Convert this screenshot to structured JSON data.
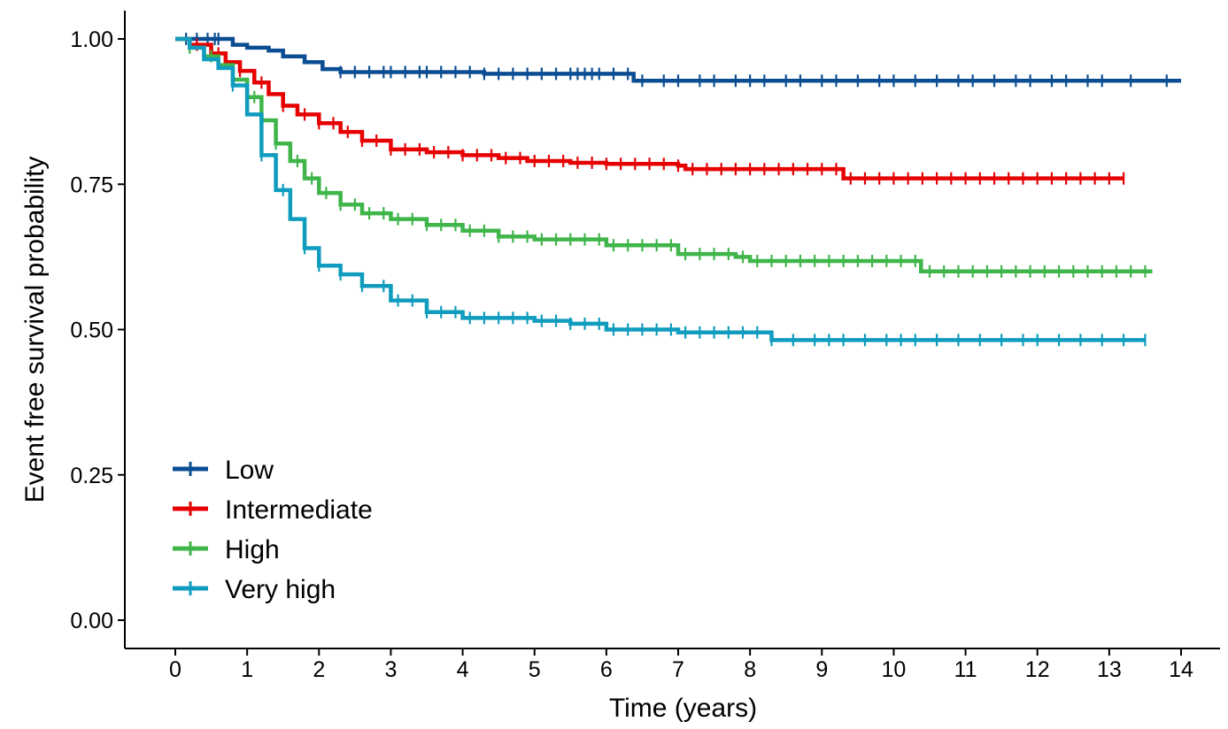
{
  "chart_data": {
    "type": "line",
    "title": "",
    "xlabel": "Time (years)",
    "ylabel": "Event free survival probability",
    "xlim": [
      0,
      14
    ],
    "ylim": [
      0,
      1
    ],
    "x_ticks": [
      "0",
      "1",
      "2",
      "3",
      "4",
      "5",
      "6",
      "7",
      "8",
      "9",
      "10",
      "11",
      "12",
      "13",
      "14"
    ],
    "y_ticks": [
      "0.00",
      "0.25",
      "0.50",
      "0.75",
      "1.00"
    ],
    "grid": false,
    "legend_position": "bottom-left",
    "series": [
      {
        "name": "Low",
        "color": "#0B4D93",
        "step": true,
        "points": [
          [
            0,
            1.0
          ],
          [
            0.8,
            0.99
          ],
          [
            1.0,
            0.985
          ],
          [
            1.3,
            0.98
          ],
          [
            1.5,
            0.97
          ],
          [
            1.8,
            0.96
          ],
          [
            2.05,
            0.948
          ],
          [
            2.3,
            0.943
          ],
          [
            3.5,
            0.943
          ],
          [
            4.3,
            0.94
          ],
          [
            6.3,
            0.94
          ],
          [
            6.38,
            0.928
          ],
          [
            14.0,
            0.928
          ]
        ],
        "censor_x": [
          0.15,
          0.3,
          0.45,
          0.55,
          0.6,
          2.3,
          2.5,
          2.7,
          2.9,
          3.0,
          3.2,
          3.4,
          3.5,
          3.7,
          3.9,
          4.1,
          4.3,
          4.5,
          4.7,
          4.9,
          5.1,
          5.3,
          5.5,
          5.6,
          5.7,
          5.8,
          5.9,
          6.1,
          6.3,
          6.5,
          6.8,
          7.0,
          7.3,
          7.5,
          7.8,
          8.0,
          8.2,
          8.5,
          8.7,
          9.0,
          9.2,
          9.5,
          9.8,
          10.0,
          10.3,
          10.6,
          10.9,
          11.1,
          11.4,
          11.7,
          11.9,
          12.2,
          12.4,
          12.7,
          12.9,
          13.3,
          13.8
        ]
      },
      {
        "name": "Intermediate",
        "color": "#E60000",
        "step": true,
        "points": [
          [
            0,
            1.0
          ],
          [
            0.2,
            0.99
          ],
          [
            0.5,
            0.975
          ],
          [
            0.7,
            0.96
          ],
          [
            0.9,
            0.945
          ],
          [
            1.1,
            0.925
          ],
          [
            1.3,
            0.905
          ],
          [
            1.5,
            0.885
          ],
          [
            1.7,
            0.87
          ],
          [
            2.0,
            0.855
          ],
          [
            2.3,
            0.84
          ],
          [
            2.6,
            0.825
          ],
          [
            3.0,
            0.81
          ],
          [
            3.5,
            0.805
          ],
          [
            4.0,
            0.8
          ],
          [
            4.5,
            0.795
          ],
          [
            4.9,
            0.79
          ],
          [
            5.5,
            0.787
          ],
          [
            6.0,
            0.785
          ],
          [
            7.0,
            0.782
          ],
          [
            7.1,
            0.776
          ],
          [
            8.9,
            0.776
          ],
          [
            9.3,
            0.76
          ],
          [
            13.2,
            0.76
          ]
        ],
        "censor_x": [
          0.3,
          0.6,
          0.9,
          1.2,
          1.5,
          1.8,
          2.0,
          2.2,
          2.4,
          2.6,
          2.8,
          3.0,
          3.2,
          3.4,
          3.6,
          3.8,
          4.0,
          4.2,
          4.4,
          4.6,
          4.8,
          5.0,
          5.2,
          5.4,
          5.6,
          5.8,
          6.0,
          6.2,
          6.4,
          6.6,
          6.8,
          7.0,
          7.2,
          7.4,
          7.6,
          7.8,
          8.0,
          8.2,
          8.4,
          8.6,
          8.8,
          9.0,
          9.2,
          9.4,
          9.6,
          9.8,
          10.0,
          10.2,
          10.4,
          10.6,
          10.8,
          11.0,
          11.2,
          11.4,
          11.6,
          11.8,
          12.0,
          12.2,
          12.4,
          12.6,
          12.8,
          13.0,
          13.2
        ]
      },
      {
        "name": "High",
        "color": "#3FB54A",
        "step": true,
        "points": [
          [
            0,
            1.0
          ],
          [
            0.2,
            0.985
          ],
          [
            0.4,
            0.97
          ],
          [
            0.6,
            0.955
          ],
          [
            0.8,
            0.93
          ],
          [
            1.0,
            0.9
          ],
          [
            1.2,
            0.86
          ],
          [
            1.4,
            0.82
          ],
          [
            1.6,
            0.79
          ],
          [
            1.8,
            0.76
          ],
          [
            2.0,
            0.735
          ],
          [
            2.3,
            0.715
          ],
          [
            2.6,
            0.7
          ],
          [
            3.0,
            0.69
          ],
          [
            3.5,
            0.68
          ],
          [
            4.0,
            0.67
          ],
          [
            4.5,
            0.66
          ],
          [
            5.0,
            0.655
          ],
          [
            6.0,
            0.645
          ],
          [
            7.0,
            0.63
          ],
          [
            7.8,
            0.625
          ],
          [
            8.0,
            0.618
          ],
          [
            10.3,
            0.618
          ],
          [
            10.38,
            0.6
          ],
          [
            13.6,
            0.6
          ]
        ],
        "censor_x": [
          0.2,
          0.5,
          0.8,
          1.1,
          1.4,
          1.7,
          1.9,
          2.1,
          2.3,
          2.5,
          2.7,
          2.9,
          3.1,
          3.3,
          3.5,
          3.7,
          3.9,
          4.1,
          4.3,
          4.5,
          4.7,
          4.9,
          5.1,
          5.3,
          5.5,
          5.7,
          5.9,
          6.1,
          6.3,
          6.5,
          6.7,
          6.9,
          7.1,
          7.3,
          7.5,
          7.7,
          7.9,
          8.1,
          8.3,
          8.5,
          8.7,
          8.9,
          9.1,
          9.3,
          9.5,
          9.7,
          9.9,
          10.1,
          10.3,
          10.5,
          10.7,
          10.9,
          11.1,
          11.3,
          11.5,
          11.7,
          11.9,
          12.1,
          12.3,
          12.5,
          12.7,
          12.9,
          13.1,
          13.3,
          13.5
        ]
      },
      {
        "name": "Very high",
        "color": "#0F9CBE",
        "step": true,
        "points": [
          [
            0,
            1.0
          ],
          [
            0.2,
            0.985
          ],
          [
            0.4,
            0.965
          ],
          [
            0.6,
            0.95
          ],
          [
            0.8,
            0.92
          ],
          [
            1.0,
            0.87
          ],
          [
            1.2,
            0.8
          ],
          [
            1.4,
            0.74
          ],
          [
            1.6,
            0.69
          ],
          [
            1.8,
            0.64
          ],
          [
            2.0,
            0.61
          ],
          [
            2.3,
            0.595
          ],
          [
            2.6,
            0.575
          ],
          [
            3.0,
            0.55
          ],
          [
            3.5,
            0.53
          ],
          [
            4.0,
            0.52
          ],
          [
            4.5,
            0.52
          ],
          [
            5.0,
            0.515
          ],
          [
            5.5,
            0.51
          ],
          [
            6.0,
            0.5
          ],
          [
            7.0,
            0.495
          ],
          [
            8.2,
            0.495
          ],
          [
            8.3,
            0.482
          ],
          [
            13.5,
            0.482
          ]
        ],
        "censor_x": [
          0.8,
          1.2,
          1.5,
          1.8,
          2.0,
          2.3,
          2.6,
          2.9,
          3.1,
          3.3,
          3.5,
          3.7,
          3.9,
          4.1,
          4.3,
          4.5,
          4.7,
          4.9,
          5.1,
          5.3,
          5.5,
          5.7,
          5.9,
          6.1,
          6.3,
          6.5,
          6.7,
          6.9,
          7.1,
          7.3,
          7.5,
          7.7,
          7.9,
          8.1,
          8.3,
          8.6,
          8.9,
          9.1,
          9.3,
          9.6,
          9.9,
          10.1,
          10.3,
          10.6,
          10.9,
          11.2,
          11.5,
          11.8,
          12.0,
          12.3,
          12.6,
          12.9,
          13.2,
          13.5
        ]
      }
    ]
  }
}
